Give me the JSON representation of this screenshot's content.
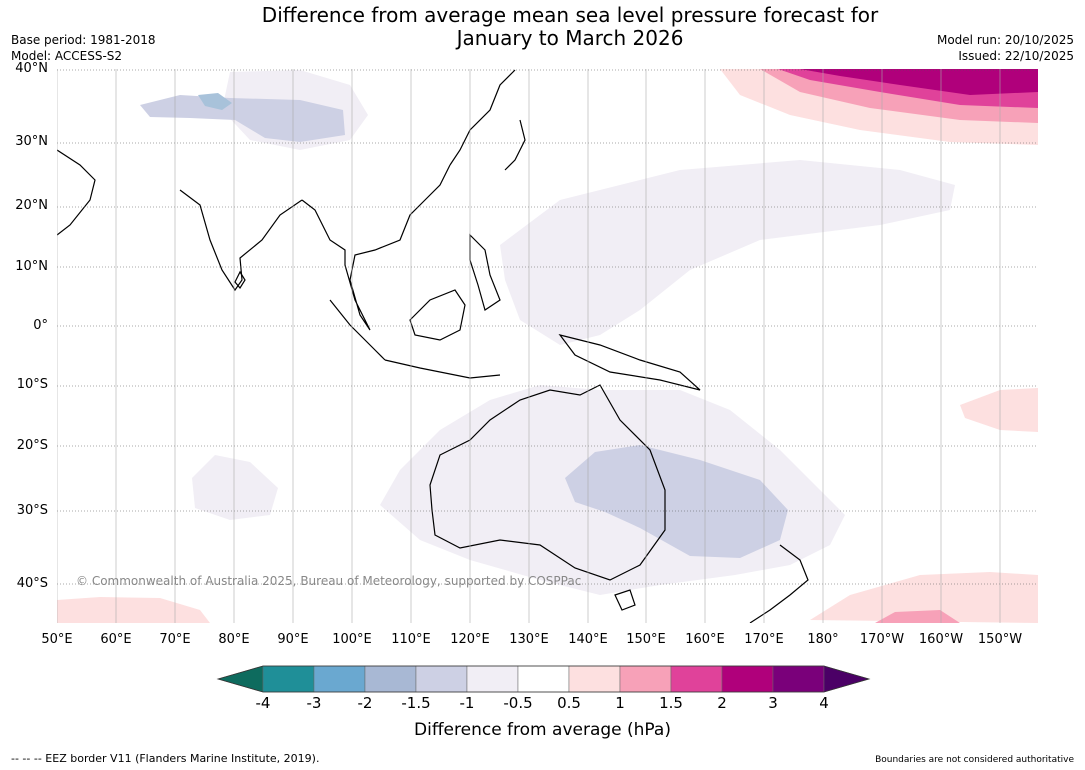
{
  "title_line1": "Difference from average mean sea level pressure forecast for",
  "title_line2": "January to March 2026",
  "base_period": "Base period: 1981-2018",
  "model": "Model: ACCESS-S2",
  "model_run": "Model run: 20/10/2025",
  "issued": "Issued: 22/10/2025",
  "lat_labels": [
    "40°N",
    "30°N",
    "20°N",
    "10°N",
    "0°",
    "10°S",
    "20°S",
    "30°S",
    "40°S"
  ],
  "lon_labels": [
    "50°E",
    "60°E",
    "70°E",
    "80°E",
    "90°E",
    "100°E",
    "110°E",
    "120°E",
    "130°E",
    "140°E",
    "150°E",
    "160°E",
    "170°E",
    "180°",
    "170°W",
    "160°W",
    "150°W"
  ],
  "copyright": "© Commonwealth of Australia 2025, Bureau of Meteorology, supported by COSPPac",
  "colorbar": {
    "ticks": [
      "-4",
      "-3",
      "-2",
      "-1.5",
      "-1",
      "-0.5",
      "0.5",
      "1",
      "1.5",
      "2",
      "3",
      "4"
    ],
    "colors": [
      "#0e6b5e",
      "#1f8f98",
      "#6aa8d0",
      "#a8b8d4",
      "#cdd0e4",
      "#f1eef5",
      "#ffffff",
      "#fde0e0",
      "#f7a1b8",
      "#e0429a",
      "#b0007b",
      "#7a007a",
      "#4b0066"
    ],
    "label": "Difference from average (hPa)"
  },
  "footer_left": "--  --  -- EEZ border V11 (Flanders Marine Institute, 2019).",
  "footer_right": "Boundaries are not considered authoritative"
}
